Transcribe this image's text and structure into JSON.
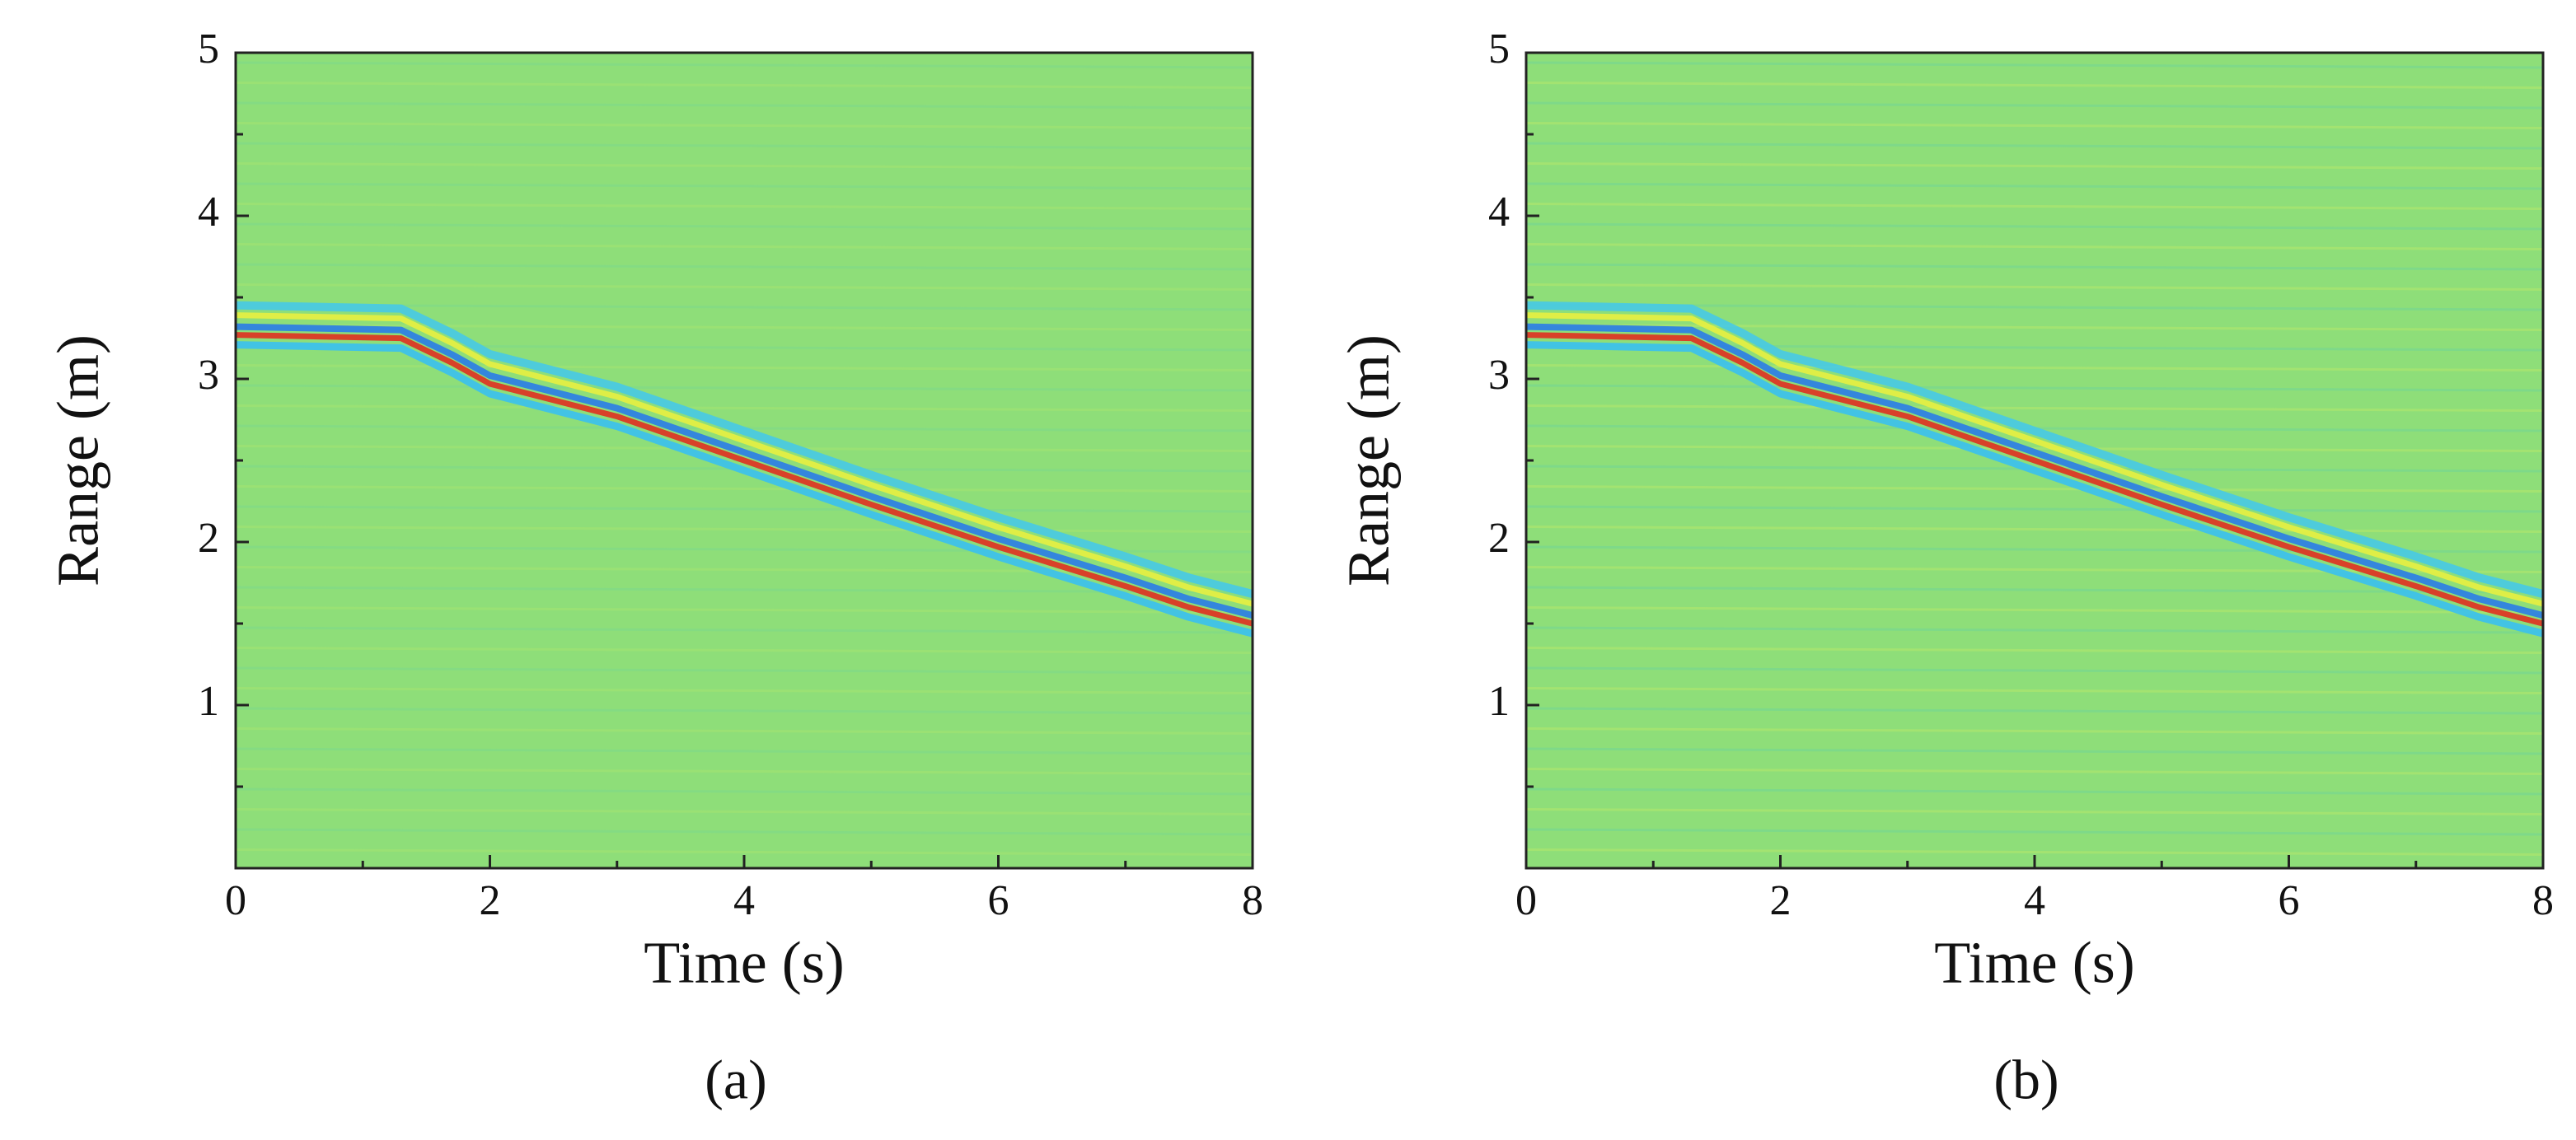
{
  "chart_data": [
    {
      "type": "heatmap",
      "label": "(a)",
      "xlabel": "Time (s)",
      "ylabel": "Range (m)",
      "xlim": [
        0,
        8
      ],
      "xticks": [
        0,
        2,
        4,
        6,
        8
      ],
      "xminorticks": [
        1,
        3,
        5,
        7
      ],
      "ylim": [
        0,
        5
      ],
      "yticks": [
        1,
        2,
        3,
        4,
        5
      ],
      "yminorticks": [
        0.5,
        1.5,
        2.5,
        3.5,
        4.5
      ],
      "background": "#8ede79",
      "trace": {
        "x": [
          0,
          1.3,
          1.7,
          2,
          3,
          4,
          5,
          6,
          7,
          7.5,
          8
        ],
        "y": [
          3.32,
          3.3,
          3.15,
          3.02,
          2.82,
          2.55,
          2.28,
          2.02,
          1.78,
          1.65,
          1.55
        ]
      }
    },
    {
      "type": "heatmap",
      "label": "(b)",
      "xlabel": "Time (s)",
      "ylabel": "Range (m)",
      "xlim": [
        0,
        8
      ],
      "xticks": [
        0,
        2,
        4,
        6,
        8
      ],
      "xminorticks": [
        1,
        3,
        5,
        7
      ],
      "ylim": [
        0,
        5
      ],
      "yticks": [
        1,
        2,
        3,
        4,
        5
      ],
      "yminorticks": [
        0.5,
        1.5,
        2.5,
        3.5,
        4.5
      ],
      "background": "#8ede79",
      "trace": {
        "x": [
          0,
          1.3,
          1.7,
          2,
          3,
          4,
          5,
          6,
          7,
          7.5,
          8
        ],
        "y": [
          3.32,
          3.3,
          3.15,
          3.02,
          2.82,
          2.55,
          2.28,
          2.02,
          1.78,
          1.65,
          1.55
        ]
      }
    }
  ]
}
